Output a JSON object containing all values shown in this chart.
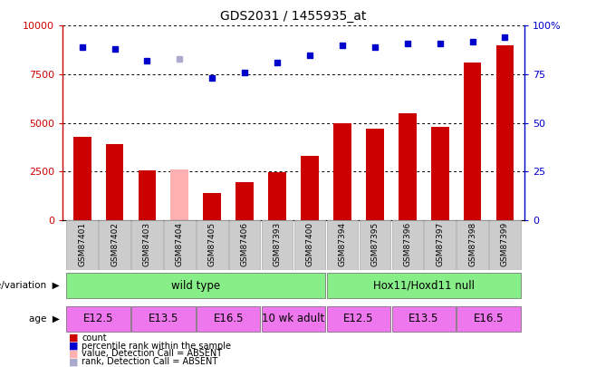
{
  "title": "GDS2031 / 1455935_at",
  "samples": [
    "GSM87401",
    "GSM87402",
    "GSM87403",
    "GSM87404",
    "GSM87405",
    "GSM87406",
    "GSM87393",
    "GSM87400",
    "GSM87394",
    "GSM87395",
    "GSM87396",
    "GSM87397",
    "GSM87398",
    "GSM87399"
  ],
  "count_values": [
    4300,
    3900,
    2550,
    2600,
    1400,
    1950,
    2450,
    3300,
    5000,
    4700,
    5500,
    4800,
    8100,
    9000
  ],
  "count_absent": [
    false,
    false,
    false,
    true,
    false,
    false,
    false,
    false,
    false,
    false,
    false,
    false,
    false,
    false
  ],
  "percentile_values": [
    89,
    88,
    82,
    83,
    73,
    76,
    81,
    85,
    90,
    89,
    91,
    91,
    92,
    94
  ],
  "percentile_absent": [
    false,
    false,
    false,
    true,
    false,
    false,
    false,
    false,
    false,
    false,
    false,
    false,
    false,
    false
  ],
  "ylim_left": [
    0,
    10000
  ],
  "ylim_right": [
    0,
    100
  ],
  "yticks_left": [
    0,
    2500,
    5000,
    7500,
    10000
  ],
  "yticks_right": [
    0,
    25,
    50,
    75,
    100
  ],
  "ytick_right_labels": [
    "0",
    "25",
    "50",
    "75",
    "100%"
  ],
  "bar_color_normal": "#cc0000",
  "bar_color_absent": "#ffb0b0",
  "dot_color_normal": "#0000cc",
  "dot_color_absent": "#aaaacc",
  "genotype_groups": [
    {
      "label": "wild type",
      "start": 0,
      "end": 8
    },
    {
      "label": "Hox11/Hoxd11 null",
      "start": 8,
      "end": 14
    }
  ],
  "age_groups": [
    {
      "label": "E12.5",
      "start": 0,
      "end": 2
    },
    {
      "label": "E13.5",
      "start": 2,
      "end": 4
    },
    {
      "label": "E16.5",
      "start": 4,
      "end": 6
    },
    {
      "label": "10 wk adult",
      "start": 6,
      "end": 8
    },
    {
      "label": "E12.5",
      "start": 8,
      "end": 10
    },
    {
      "label": "E13.5",
      "start": 10,
      "end": 12
    },
    {
      "label": "E16.5",
      "start": 12,
      "end": 14
    }
  ],
  "legend_items": [
    {
      "label": "count",
      "color": "#cc0000"
    },
    {
      "label": "percentile rank within the sample",
      "color": "#0000cc"
    },
    {
      "label": "value, Detection Call = ABSENT",
      "color": "#ffb0b0"
    },
    {
      "label": "rank, Detection Call = ABSENT",
      "color": "#aaaacc"
    }
  ],
  "geno_color": "#88ee88",
  "age_color": "#ee77ee",
  "bg_color": "#ffffff",
  "xtick_bg": "#cccccc"
}
